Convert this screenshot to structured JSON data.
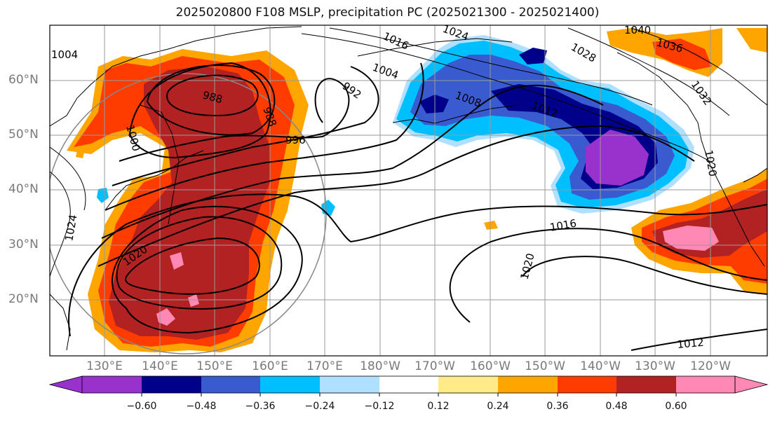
{
  "title": "2025020800 F108 MSLP, precipitation PC (2025021300 - 2025021400)",
  "lat_labels": [
    "60°N",
    "50°N",
    "40°N",
    "30°N",
    "20°N"
  ],
  "lon_labels": [
    "130°E",
    "140°E",
    "150°E",
    "160°E",
    "170°E",
    "180°W",
    "170°W",
    "160°W",
    "150°W",
    "140°W",
    "130°W",
    "120°W"
  ],
  "colorbar": {
    "ticks": [
      "−0.60",
      "−0.48",
      "−0.36",
      "−0.24",
      "−0.12",
      "0.12",
      "0.24",
      "0.36",
      "0.48",
      "0.60"
    ],
    "colors": [
      "#9932cc",
      "#00008b",
      "#3a5bd0",
      "#00bfff",
      "#b0e0ff",
      "#ffffff",
      "#ffeb88",
      "#ffa500",
      "#ff3c00",
      "#b22222",
      "#ff88b4"
    ]
  },
  "contour_labels": {
    "c1": "1004",
    "c2": "992",
    "c3": "1004",
    "c4": "988",
    "c5": "988",
    "c6": "996",
    "c7": "1000",
    "c8": "1008",
    "c9": "1012",
    "c10": "1028",
    "c11": "1036",
    "c12": "1032",
    "c13": "1024",
    "c14": "1020",
    "c15": "1016",
    "c16": "1020",
    "c17": "1012",
    "c18": "1016",
    "c19": "1024",
    "c20": "1040",
    "c21": "1020"
  }
}
